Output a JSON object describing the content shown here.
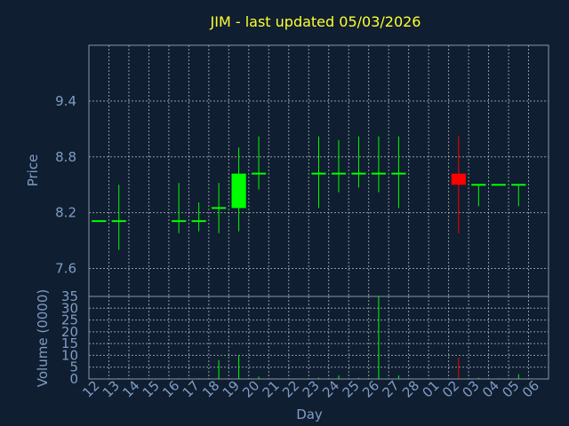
{
  "chart_data": [
    {
      "type": "candlestick",
      "title": "JIM - last updated 05/03/2026",
      "ylabel": "Price",
      "ylim": [
        7.3,
        10.0
      ],
      "yticks": [
        "7.6",
        "8.2",
        "8.8",
        "9.4"
      ],
      "categories": [
        "12",
        "13",
        "14",
        "15",
        "16",
        "17",
        "18",
        "19",
        "20",
        "21",
        "22",
        "23",
        "24",
        "25",
        "26",
        "27",
        "28",
        "01",
        "02",
        "03",
        "04",
        "05",
        "06"
      ],
      "grid": true,
      "up_color": "#00ff00",
      "down_color": "#ff0000",
      "candles": [
        {
          "day": "12",
          "open": 8.11,
          "high": 8.11,
          "low": 8.11,
          "close": 8.11
        },
        {
          "day": "13",
          "open": 8.11,
          "high": 8.5,
          "low": 7.8,
          "close": 8.11
        },
        {
          "day": "16",
          "open": 8.11,
          "high": 8.52,
          "low": 7.98,
          "close": 8.11
        },
        {
          "day": "17",
          "open": 8.11,
          "high": 8.31,
          "low": 8.0,
          "close": 8.11
        },
        {
          "day": "18",
          "open": 8.25,
          "high": 8.52,
          "low": 7.98,
          "close": 8.25
        },
        {
          "day": "19",
          "open": 8.25,
          "high": 8.9,
          "low": 8.0,
          "close": 8.62
        },
        {
          "day": "20",
          "open": 8.62,
          "high": 9.02,
          "low": 8.45,
          "close": 8.62
        },
        {
          "day": "23",
          "open": 8.62,
          "high": 9.02,
          "low": 8.25,
          "close": 8.62
        },
        {
          "day": "24",
          "open": 8.62,
          "high": 8.98,
          "low": 8.42,
          "close": 8.62
        },
        {
          "day": "25",
          "open": 8.62,
          "high": 9.02,
          "low": 8.47,
          "close": 8.62
        },
        {
          "day": "26",
          "open": 8.62,
          "high": 9.02,
          "low": 8.42,
          "close": 8.62
        },
        {
          "day": "27",
          "open": 8.62,
          "high": 9.02,
          "low": 8.25,
          "close": 8.62
        },
        {
          "day": "02",
          "open": 8.62,
          "high": 9.02,
          "low": 7.98,
          "close": 8.5
        },
        {
          "day": "03",
          "open": 8.5,
          "high": 8.5,
          "low": 8.27,
          "close": 8.5
        },
        {
          "day": "04",
          "open": 8.5,
          "high": 8.5,
          "low": 8.5,
          "close": 8.5
        },
        {
          "day": "05",
          "open": 8.5,
          "high": 8.5,
          "low": 8.27,
          "close": 8.5
        }
      ]
    },
    {
      "type": "bar",
      "ylabel": "Volume (0000)",
      "xlabel": "Day",
      "ylim": [
        0,
        35
      ],
      "yticks": [
        "0",
        "5",
        "10",
        "15",
        "20",
        "25",
        "30",
        "35"
      ],
      "categories": [
        "12",
        "13",
        "14",
        "15",
        "16",
        "17",
        "18",
        "19",
        "20",
        "21",
        "22",
        "23",
        "24",
        "25",
        "26",
        "27",
        "28",
        "01",
        "02",
        "03",
        "04",
        "05",
        "06"
      ],
      "values": [
        0,
        0.3,
        0,
        0,
        0.3,
        0.3,
        8,
        10,
        1,
        0,
        0,
        0.5,
        1.5,
        0.5,
        35,
        1.5,
        0,
        0,
        9,
        0.5,
        0.3,
        2,
        0
      ],
      "colors": [
        "#00ff00",
        "#00ff00",
        "#00ff00",
        "#00ff00",
        "#00ff00",
        "#00ff00",
        "#00ff00",
        "#00ff00",
        "#00ff00",
        "#00ff00",
        "#00ff00",
        "#00ff00",
        "#00ff00",
        "#00ff00",
        "#00ff00",
        "#00ff00",
        "#00ff00",
        "#00ff00",
        "#ff0000",
        "#00ff00",
        "#00ff00",
        "#00ff00",
        "#00ff00"
      ]
    }
  ]
}
